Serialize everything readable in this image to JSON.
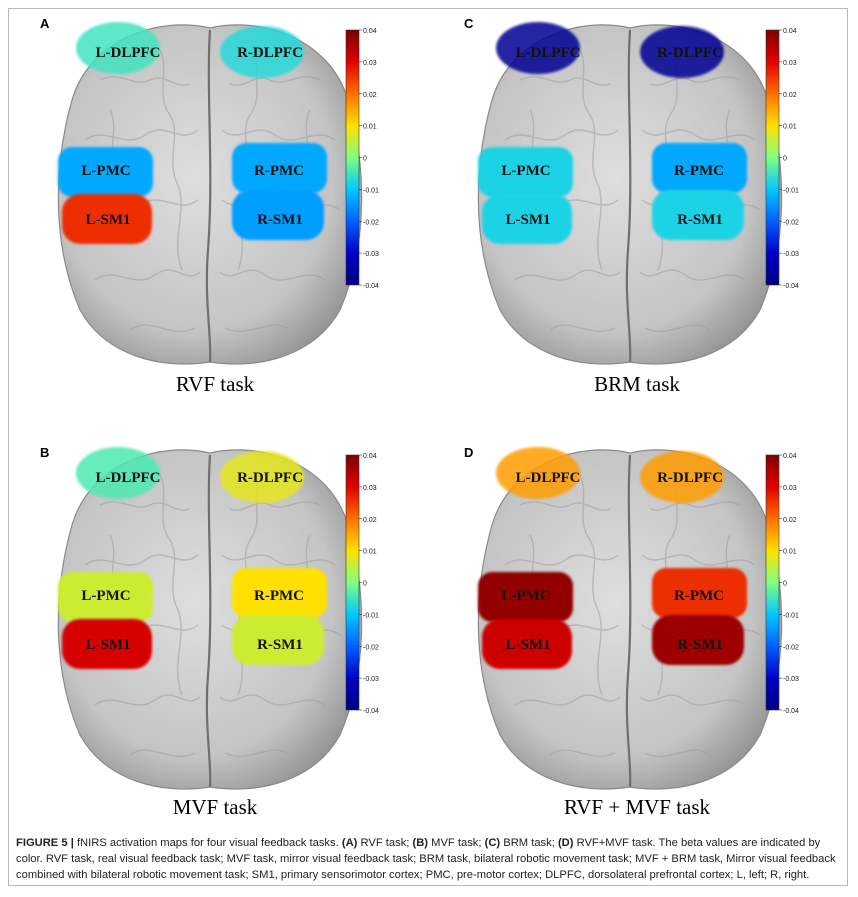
{
  "colorbar": {
    "ticks": [
      "0.04",
      "0.03",
      "0.02",
      "0.01",
      "0",
      "-0.01",
      "-0.02",
      "-0.03",
      "-0.04"
    ],
    "colors": [
      "#7f0000",
      "#e00000",
      "#ff7000",
      "#ffe000",
      "#80ff80",
      "#00c8ff",
      "#0060ff",
      "#0000c8",
      "#00007f"
    ]
  },
  "panels": [
    {
      "letter": "A",
      "title": "RVF task",
      "dlpfc_l": "L-DLPFC",
      "dlpfc_r": "R-DLPFC",
      "pmc_l": "L-PMC",
      "pmc_r": "R-PMC",
      "sm1_l": "L-SM1",
      "sm1_r": "R-SM1",
      "values": {
        "dlpfc_l": -0.005,
        "dlpfc_r": -0.007,
        "pmc_l": -0.013,
        "pmc_r": -0.013,
        "sm1_l": 0.026,
        "sm1_r": -0.014
      }
    },
    {
      "letter": "C",
      "title": "BRM task",
      "dlpfc_l": "L-DLPFC",
      "dlpfc_r": "R-DLPFC",
      "pmc_l": "L-PMC",
      "pmc_r": "R-PMC",
      "sm1_l": "L-SM1",
      "sm1_r": "R-SM1",
      "values": {
        "dlpfc_l": -0.037,
        "dlpfc_r": -0.037,
        "pmc_l": -0.008,
        "pmc_r": -0.013,
        "sm1_l": -0.008,
        "sm1_r": -0.008
      }
    },
    {
      "letter": "B",
      "title": "MVF task",
      "dlpfc_l": "L-DLPFC",
      "dlpfc_r": "R-DLPFC",
      "pmc_l": "L-PMC",
      "pmc_r": "R-PMC",
      "sm1_l": "L-SM1",
      "sm1_r": "R-SM1",
      "values": {
        "dlpfc_l": -0.004,
        "dlpfc_r": 0.008,
        "pmc_l": 0.006,
        "pmc_r": 0.01,
        "sm1_l": 0.031,
        "sm1_r": 0.006
      }
    },
    {
      "letter": "D",
      "title": "RVF + MVF task",
      "dlpfc_l": "L-DLPFC",
      "dlpfc_r": "R-DLPFC",
      "pmc_l": "L-PMC",
      "pmc_r": "R-PMC",
      "sm1_l": "L-SM1",
      "sm1_r": "R-SM1",
      "values": {
        "dlpfc_l": 0.016,
        "dlpfc_r": 0.016,
        "pmc_l": 0.038,
        "pmc_r": 0.026,
        "sm1_l": 0.032,
        "sm1_r": 0.037
      }
    }
  ],
  "caption": {
    "label": "FIGURE 5 |",
    "intro": " fNIRS activation maps for four visual feedback tasks. ",
    "a_key": "(A)",
    "a_text": " RVF task; ",
    "b_key": "(B)",
    "b_text": " MVF task; ",
    "c_key": "(C)",
    "c_text": " BRM task; ",
    "d_key": "(D)",
    "d_text": " RVF+MVF task. The beta values are indicated by color. RVF task, real visual feedback task; MVF task, mirror visual feedback task; BRM task, bilateral robotic movement task; MVF + BRM task, Mirror visual feedback combined with bilateral robotic movement task; SM1, primary sensorimotor cortex; PMC, pre-motor cortex; DLPFC, dorsolateral prefrontal cortex; L, left; R, right."
  }
}
